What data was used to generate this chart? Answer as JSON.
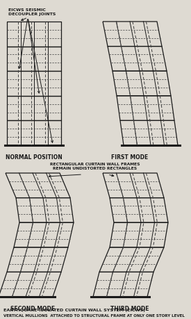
{
  "title": "EARTHQUAKE-ISOLATED CURTAIN WALL SYSTEM (EICWS)",
  "subtitle": "VERTICAL MULLIONS  ATTACHED TO STRUCTURAL FRAME AT ONLY ONE STORY LEVEL",
  "label_normal": "NORMAL POSITION",
  "label_first": "FIRST MODE",
  "label_second": "SECOND MODE",
  "label_third": "THIRD MODE",
  "label_arrow1": "EICWS SEISMIC\nDECOUPLER JOINTS",
  "label_arrow2": "RECTANGULAR CURTAIN WALL FRAMES\nREMAIN UNDISTORTED RECTANGLES",
  "bg_color": "#dedad2",
  "line_color": "#1a1a1a",
  "dashed_color": "#444444",
  "n_stories": 5,
  "fig_width": 2.75,
  "fig_height": 4.6,
  "offsets_first": [
    0,
    7,
    14,
    20,
    25,
    30
  ],
  "offsets_second": [
    0,
    15,
    20,
    12,
    2,
    -10
  ],
  "offsets_third": [
    0,
    10,
    16,
    10,
    -5,
    -14
  ]
}
